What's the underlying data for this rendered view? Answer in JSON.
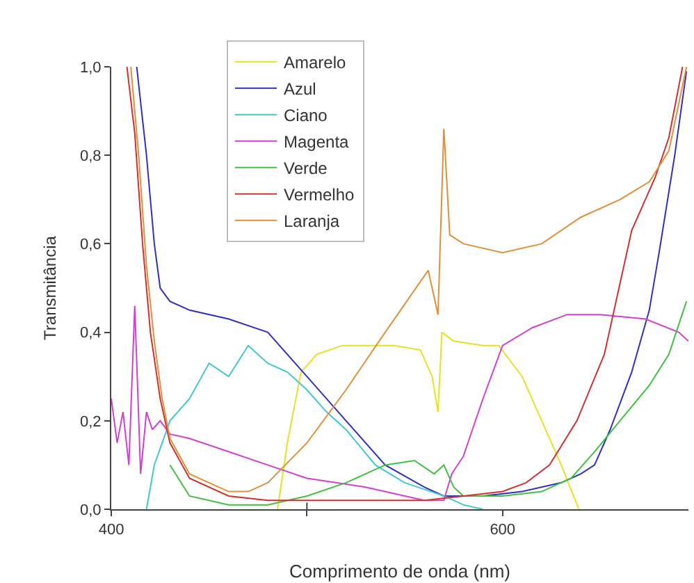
{
  "chart_data": {
    "type": "line",
    "xlabel": "Comprimento de onda (nm)",
    "ylabel": "Transmitância",
    "xlim": [
      400,
      695
    ],
    "xticks": [
      400,
      {
        "value": 500,
        "label": null
      },
      600
    ],
    "ylim": [
      0,
      1
    ],
    "yticks": [
      {
        "value": 0,
        "label": "0,0"
      },
      {
        "value": 0.2,
        "label": "0,2"
      },
      {
        "value": 0.4,
        "label": "0,4"
      },
      {
        "value": 0.6,
        "label": "0,6"
      },
      {
        "value": 0.8,
        "label": "0,8"
      },
      {
        "value": 1,
        "label": "1,0"
      }
    ],
    "grid": false,
    "legend": "top",
    "marker": "none",
    "line_style": "solid",
    "series": [
      {
        "name": "Amarelo",
        "color": "#e8e020",
        "x": [
          485,
          490,
          497,
          505,
          518,
          530,
          545,
          558,
          564,
          567,
          569,
          575,
          590,
          598,
          610,
          620,
          630,
          639
        ],
        "values": [
          0,
          0.15,
          0.31,
          0.35,
          0.37,
          0.37,
          0.37,
          0.36,
          0.3,
          0.22,
          0.4,
          0.38,
          0.37,
          0.37,
          0.3,
          0.2,
          0.1,
          0
        ]
      },
      {
        "name": "Azul",
        "color": "#3030c0",
        "x": [
          413,
          418,
          422,
          425,
          430,
          440,
          460,
          480,
          500,
          520,
          540,
          560,
          570,
          590,
          610,
          630,
          640,
          647,
          655,
          666,
          675,
          680,
          688,
          694
        ],
        "values": [
          1,
          0.8,
          0.6,
          0.5,
          0.47,
          0.45,
          0.43,
          0.4,
          0.3,
          0.2,
          0.1,
          0.05,
          0.03,
          0.03,
          0.04,
          0.06,
          0.08,
          0.1,
          0.18,
          0.31,
          0.45,
          0.58,
          0.8,
          0.99
        ]
      },
      {
        "name": "Ciano",
        "color": "#40c8d0",
        "x": [
          418,
          422,
          430,
          440,
          450,
          460,
          470,
          480,
          490,
          500,
          510,
          520,
          535,
          550,
          570,
          580,
          590
        ],
        "values": [
          0,
          0.1,
          0.2,
          0.25,
          0.33,
          0.3,
          0.37,
          0.33,
          0.31,
          0.27,
          0.22,
          0.18,
          0.1,
          0.06,
          0.03,
          0.01,
          0
        ]
      },
      {
        "name": "Magenta",
        "color": "#d040d0",
        "x": [
          400,
          403,
          406,
          409,
          412,
          415,
          418,
          421,
          425,
          430,
          440,
          460,
          480,
          500,
          530,
          560,
          570,
          574,
          580,
          590,
          600,
          615,
          633,
          650,
          673,
          690,
          695
        ],
        "values": [
          0.25,
          0.15,
          0.22,
          0.1,
          0.46,
          0.08,
          0.22,
          0.18,
          0.2,
          0.17,
          0.16,
          0.13,
          0.1,
          0.07,
          0.05,
          0.02,
          0.02,
          0.08,
          0.12,
          0.25,
          0.37,
          0.41,
          0.44,
          0.44,
          0.43,
          0.4,
          0.38
        ]
      },
      {
        "name": "Verde",
        "color": "#40c040",
        "x": [
          430,
          440,
          460,
          480,
          500,
          520,
          540,
          555,
          565,
          570,
          575,
          580,
          600,
          620,
          635,
          647,
          660,
          675,
          685,
          694
        ],
        "values": [
          0.1,
          0.03,
          0.01,
          0.01,
          0.03,
          0.06,
          0.1,
          0.11,
          0.08,
          0.1,
          0.05,
          0.03,
          0.03,
          0.04,
          0.07,
          0.13,
          0.2,
          0.28,
          0.35,
          0.47
        ]
      },
      {
        "name": "Vermelho",
        "color": "#d03030",
        "x": [
          408,
          412,
          416,
          420,
          425,
          430,
          440,
          460,
          480,
          520,
          560,
          580,
          600,
          612,
          624,
          638,
          652,
          666,
          678,
          685,
          692
        ],
        "values": [
          1,
          0.85,
          0.6,
          0.4,
          0.25,
          0.15,
          0.07,
          0.03,
          0.02,
          0.02,
          0.02,
          0.03,
          0.04,
          0.06,
          0.1,
          0.2,
          0.35,
          0.63,
          0.75,
          0.84,
          1
        ]
      },
      {
        "name": "Laranja",
        "color": "#e0903a",
        "x": [
          410,
          414,
          418,
          422,
          426,
          430,
          440,
          460,
          470,
          480,
          500,
          520,
          540,
          562,
          567,
          570,
          573,
          580,
          600,
          620,
          640,
          660,
          675,
          685,
          694
        ],
        "values": [
          1,
          0.8,
          0.55,
          0.38,
          0.25,
          0.16,
          0.08,
          0.04,
          0.04,
          0.06,
          0.15,
          0.27,
          0.4,
          0.54,
          0.44,
          0.86,
          0.62,
          0.6,
          0.58,
          0.6,
          0.66,
          0.7,
          0.74,
          0.81,
          1
        ]
      }
    ]
  }
}
